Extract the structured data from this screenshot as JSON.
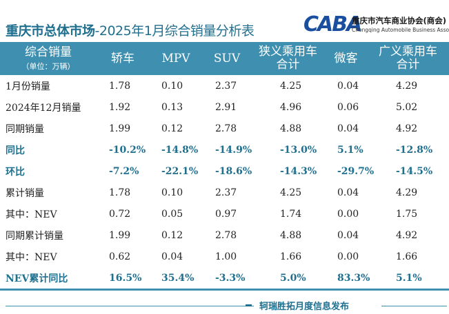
{
  "title": {
    "bold_part": "重庆市总体市场",
    "normal_part": "-2025年1月综合销量分析表"
  },
  "logo": {
    "mark": "CABA",
    "name": "重庆市汽车商业协会(商会)",
    "sub": "Chongqing Automobile Business Association"
  },
  "table": {
    "header": {
      "row_label": "综合销量",
      "unit": "（单位：万辆）",
      "columns": [
        {
          "line1": "轿车",
          "line2": ""
        },
        {
          "line1": "MPV",
          "line2": ""
        },
        {
          "line1": "SUV",
          "line2": ""
        },
        {
          "line1": "狭义乘用车",
          "line2": "合计"
        },
        {
          "line1": "微客",
          "line2": ""
        },
        {
          "line1": "广义乘用车",
          "line2": "合计"
        }
      ]
    },
    "rows": [
      {
        "label": "1月份销量",
        "values": [
          "1.78",
          "0.10",
          "2.37",
          "4.25",
          "0.04",
          "4.29"
        ]
      },
      {
        "label": "2024年12月销量",
        "values": [
          "1.92",
          "0.13",
          "2.91",
          "4.96",
          "0.06",
          "5.02"
        ]
      },
      {
        "label": "同期销量",
        "values": [
          "1.99",
          "0.12",
          "2.78",
          "4.88",
          "0.04",
          "4.92"
        ]
      },
      {
        "label": "同比",
        "values": [
          "-10.2%",
          "-14.8%",
          "-14.9%",
          "-13.0%",
          "5.1%",
          "-12.8%"
        ]
      },
      {
        "label": "环比",
        "values": [
          "-7.2%",
          "-22.1%",
          "-18.6%",
          "-14.3%",
          "-29.7%",
          "-14.5%"
        ]
      },
      {
        "label": "累计销量",
        "values": [
          "1.78",
          "0.10",
          "2.37",
          "4.25",
          "0.04",
          "4.29"
        ]
      },
      {
        "label": "其中：NEV",
        "values": [
          "0.72",
          "0.05",
          "0.97",
          "1.74",
          "0.00",
          "1.75"
        ]
      },
      {
        "label": "同期累计销量",
        "values": [
          "1.99",
          "0.12",
          "2.78",
          "4.88",
          "0.04",
          "4.92"
        ]
      },
      {
        "label": "其中：NEV",
        "values": [
          "0.62",
          "0.04",
          "1.00",
          "1.66",
          "0.00",
          "1.66"
        ]
      },
      {
        "label": "NEV累计同比",
        "values": [
          "16.5%",
          "35.4%",
          "-3.3%",
          "5.0%",
          "83.3%",
          "5.1%"
        ]
      }
    ]
  },
  "footer": {
    "text": "轲瑞胜拓月度信息发布"
  },
  "colors": {
    "header_bg": "#3f8fb0",
    "accent_text": "#1f6f8f",
    "logo_blue": "#1a4fa0"
  }
}
